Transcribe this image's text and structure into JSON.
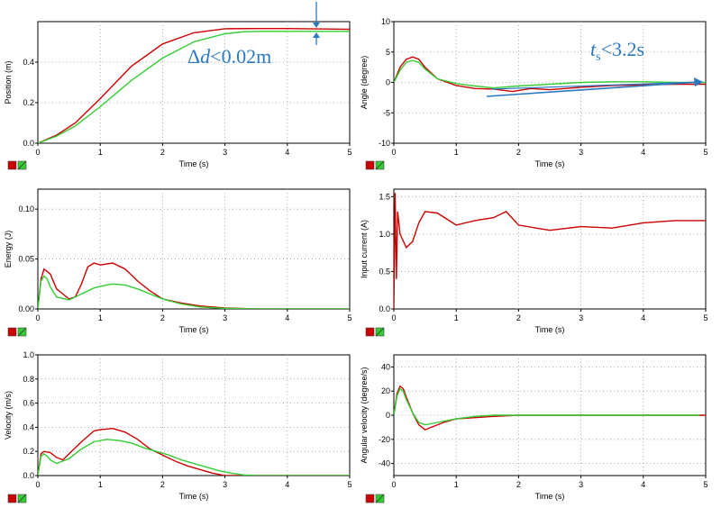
{
  "colors": {
    "red": "#cc0000",
    "green": "#33cc33",
    "annotation": "#2a78c2",
    "grid": "#9a9a9a"
  },
  "legend_icons": [
    "red-swatch-icon",
    "green-swatch-icon"
  ],
  "annotations": {
    "position": {
      "symbol": "Δ",
      "variable": "d",
      "relation": "<0.02m"
    },
    "angle": {
      "variable": "t",
      "subscript": "s",
      "relation": "<3.2s"
    }
  },
  "chart_data": [
    {
      "id": "position",
      "type": "line",
      "xlabel": "Time (s)",
      "ylabel": "Position (m)",
      "xlim": [
        0,
        5
      ],
      "ylim": [
        0,
        0.6
      ],
      "xticks": [
        "0",
        "1",
        "2",
        "3",
        "4",
        "5"
      ],
      "yticks": [
        {
          "v": 0.0,
          "t": "0.0"
        },
        {
          "v": 0.2,
          "t": "0.2"
        },
        {
          "v": 0.4,
          "t": "0.4"
        }
      ],
      "grid": true,
      "series": [
        {
          "color": "red",
          "x": [
            0,
            0.3,
            0.6,
            1.0,
            1.5,
            2.0,
            2.5,
            3.0,
            3.5,
            4.0,
            5.0
          ],
          "y": [
            0,
            0.04,
            0.1,
            0.22,
            0.38,
            0.49,
            0.545,
            0.565,
            0.566,
            0.566,
            0.562
          ]
        },
        {
          "color": "green",
          "x": [
            0,
            0.3,
            0.6,
            1.0,
            1.5,
            2.0,
            2.5,
            3.0,
            3.3,
            3.6,
            5.0
          ],
          "y": [
            0,
            0.035,
            0.085,
            0.18,
            0.31,
            0.42,
            0.5,
            0.54,
            0.55,
            0.552,
            0.552
          ]
        }
      ]
    },
    {
      "id": "angle",
      "type": "line",
      "xlabel": "Time (s)",
      "ylabel": "Angle (degree)",
      "xlim": [
        0,
        5
      ],
      "ylim": [
        -10,
        10
      ],
      "xticks": [
        "0",
        "1",
        "2",
        "3",
        "4",
        "5"
      ],
      "yticks": [
        {
          "v": -10,
          "t": "-10"
        },
        {
          "v": -5,
          "t": "-5"
        },
        {
          "v": 0,
          "t": "0"
        },
        {
          "v": 5,
          "t": "5"
        },
        {
          "v": 10,
          "t": "10"
        }
      ],
      "grid": true,
      "series": [
        {
          "color": "red",
          "x": [
            0,
            0.1,
            0.2,
            0.3,
            0.4,
            0.5,
            0.7,
            1.0,
            1.3,
            1.6,
            1.9,
            2.2,
            2.5,
            3.0,
            3.5,
            4.0,
            4.5,
            5.0
          ],
          "y": [
            0,
            2.5,
            3.8,
            4.2,
            3.8,
            2.5,
            0.6,
            -0.5,
            -1.0,
            -1.1,
            -1.5,
            -1.0,
            -1.2,
            -0.8,
            -0.5,
            -0.4,
            -0.3,
            -0.3
          ]
        },
        {
          "color": "green",
          "x": [
            0,
            0.1,
            0.2,
            0.3,
            0.4,
            0.5,
            0.7,
            1.0,
            1.3,
            1.6,
            2.0,
            2.5,
            3.0,
            3.5,
            4.0,
            4.5,
            5.0
          ],
          "y": [
            0,
            2.0,
            3.3,
            3.6,
            3.3,
            2.2,
            0.6,
            -0.2,
            -0.6,
            -0.9,
            -0.6,
            -0.3,
            0.0,
            0.1,
            0.1,
            0.0,
            0.0
          ]
        }
      ]
    },
    {
      "id": "energy",
      "type": "line",
      "xlabel": "Time (s)",
      "ylabel": "Energy (J)",
      "xlim": [
        0,
        5
      ],
      "ylim": [
        0,
        0.12
      ],
      "xticks": [
        "0",
        "1",
        "2",
        "3",
        "4",
        "5"
      ],
      "yticks": [
        {
          "v": 0.0,
          "t": "0.00"
        },
        {
          "v": 0.05,
          "t": "0.05"
        },
        {
          "v": 0.1,
          "t": "0.10"
        }
      ],
      "grid": true,
      "series": [
        {
          "color": "red",
          "x": [
            0,
            0.05,
            0.1,
            0.2,
            0.3,
            0.5,
            0.6,
            0.7,
            0.8,
            0.9,
            1.0,
            1.2,
            1.4,
            1.6,
            1.8,
            2.0,
            2.3,
            2.6,
            3.0,
            3.5,
            4.0,
            5.0
          ],
          "y": [
            0,
            0.03,
            0.04,
            0.035,
            0.02,
            0.01,
            0.012,
            0.025,
            0.042,
            0.046,
            0.044,
            0.046,
            0.04,
            0.028,
            0.018,
            0.01,
            0.006,
            0.003,
            0.001,
            0.0,
            0.0,
            0.0
          ]
        },
        {
          "color": "green",
          "x": [
            0,
            0.05,
            0.1,
            0.15,
            0.2,
            0.3,
            0.5,
            0.7,
            0.9,
            1.1,
            1.2,
            1.4,
            1.6,
            1.8,
            2.0,
            2.3,
            2.6,
            3.0,
            3.5,
            4.0,
            5.0
          ],
          "y": [
            0,
            0.028,
            0.033,
            0.03,
            0.022,
            0.012,
            0.009,
            0.015,
            0.021,
            0.024,
            0.025,
            0.024,
            0.02,
            0.015,
            0.01,
            0.005,
            0.002,
            0.0005,
            0.0,
            0.0,
            0.0
          ]
        }
      ]
    },
    {
      "id": "current",
      "type": "line",
      "xlabel": "Time (s)",
      "ylabel": "Input current (A)",
      "xlim": [
        0,
        5
      ],
      "ylim": [
        0,
        1.6
      ],
      "xticks": [
        "0",
        "1",
        "2",
        "3",
        "4",
        "5"
      ],
      "yticks": [
        {
          "v": 0.0,
          "t": "0.0"
        },
        {
          "v": 0.5,
          "t": "0.5"
        },
        {
          "v": 1.0,
          "t": "1.0"
        },
        {
          "v": 1.5,
          "t": "1.5"
        }
      ],
      "grid": true,
      "series": [
        {
          "color": "red",
          "x": [
            0,
            0.02,
            0.04,
            0.06,
            0.1,
            0.2,
            0.3,
            0.4,
            0.5,
            0.7,
            1.0,
            1.3,
            1.6,
            1.8,
            2.0,
            2.5,
            3.0,
            3.5,
            4.0,
            4.5,
            5.0
          ],
          "y": [
            0,
            1.55,
            0.4,
            1.3,
            1.0,
            0.82,
            0.9,
            1.15,
            1.3,
            1.28,
            1.12,
            1.18,
            1.22,
            1.3,
            1.12,
            1.05,
            1.1,
            1.08,
            1.15,
            1.18,
            1.18
          ]
        }
      ]
    },
    {
      "id": "velocity",
      "type": "line",
      "xlabel": "Time (s)",
      "ylabel": "Velocity (m/s)",
      "xlim": [
        0,
        5
      ],
      "ylim": [
        0,
        1.0
      ],
      "xticks": [
        "0",
        "1",
        "2",
        "3",
        "4",
        "5"
      ],
      "yticks": [
        {
          "v": 0.0,
          "t": "0.0"
        },
        {
          "v": 0.2,
          "t": "0.2"
        },
        {
          "v": 0.4,
          "t": "0.4"
        },
        {
          "v": 0.6,
          "t": "0.6"
        },
        {
          "v": 0.8,
          "t": "0.8"
        },
        {
          "v": 1.0,
          "t": "1.0"
        }
      ],
      "grid": true,
      "series": [
        {
          "color": "red",
          "x": [
            0,
            0.05,
            0.1,
            0.2,
            0.3,
            0.4,
            0.5,
            0.7,
            0.9,
            1.0,
            1.2,
            1.4,
            1.6,
            1.8,
            2.0,
            2.2,
            2.4,
            2.6,
            2.8,
            3.0,
            3.5,
            4.0,
            5.0
          ],
          "y": [
            0,
            0.18,
            0.2,
            0.19,
            0.15,
            0.13,
            0.18,
            0.28,
            0.37,
            0.38,
            0.39,
            0.36,
            0.3,
            0.22,
            0.17,
            0.12,
            0.08,
            0.05,
            0.02,
            0.0,
            0.0,
            0.0,
            0.0
          ]
        },
        {
          "color": "green",
          "x": [
            0,
            0.05,
            0.1,
            0.15,
            0.2,
            0.3,
            0.5,
            0.7,
            0.9,
            1.1,
            1.3,
            1.5,
            1.7,
            1.9,
            2.1,
            2.3,
            2.5,
            2.7,
            2.9,
            3.1,
            3.3,
            3.5,
            5.0
          ],
          "y": [
            0,
            0.16,
            0.18,
            0.16,
            0.13,
            0.1,
            0.14,
            0.22,
            0.28,
            0.3,
            0.29,
            0.27,
            0.23,
            0.2,
            0.17,
            0.13,
            0.1,
            0.07,
            0.04,
            0.02,
            0.005,
            0.0,
            0.0
          ]
        }
      ]
    },
    {
      "id": "angular_velocity",
      "type": "line",
      "xlabel": "Time (s)",
      "ylabel": "Angular velocity (degree/s)",
      "xlim": [
        0,
        5
      ],
      "ylim": [
        -50,
        50
      ],
      "xticks": [
        "0",
        "1",
        "2",
        "3",
        "4",
        "5"
      ],
      "yticks": [
        {
          "v": -40,
          "t": "-40"
        },
        {
          "v": -20,
          "t": "-20"
        },
        {
          "v": 0,
          "t": "0"
        },
        {
          "v": 20,
          "t": "20"
        },
        {
          "v": 40,
          "t": "40"
        }
      ],
      "grid": true,
      "series": [
        {
          "color": "red",
          "x": [
            0,
            0.05,
            0.1,
            0.15,
            0.2,
            0.3,
            0.4,
            0.5,
            0.6,
            0.8,
            1.0,
            1.3,
            1.6,
            2.0,
            2.5,
            3.0,
            3.5,
            4.0,
            4.5,
            5.0
          ],
          "y": [
            0,
            18,
            24,
            22,
            15,
            2,
            -8,
            -12,
            -10,
            -6,
            -3,
            -2,
            -1,
            0,
            0,
            0,
            0,
            0,
            0,
            0
          ]
        },
        {
          "color": "green",
          "x": [
            0,
            0.05,
            0.1,
            0.15,
            0.2,
            0.3,
            0.4,
            0.5,
            0.7,
            1.0,
            1.3,
            1.6,
            2.0,
            2.5,
            3.0,
            3.5,
            4.0,
            4.5,
            4.9
          ],
          "y": [
            0,
            16,
            22,
            20,
            13,
            2,
            -6,
            -8,
            -6,
            -3,
            -1,
            0,
            0,
            0,
            0,
            0,
            0,
            0,
            0
          ]
        }
      ]
    }
  ]
}
